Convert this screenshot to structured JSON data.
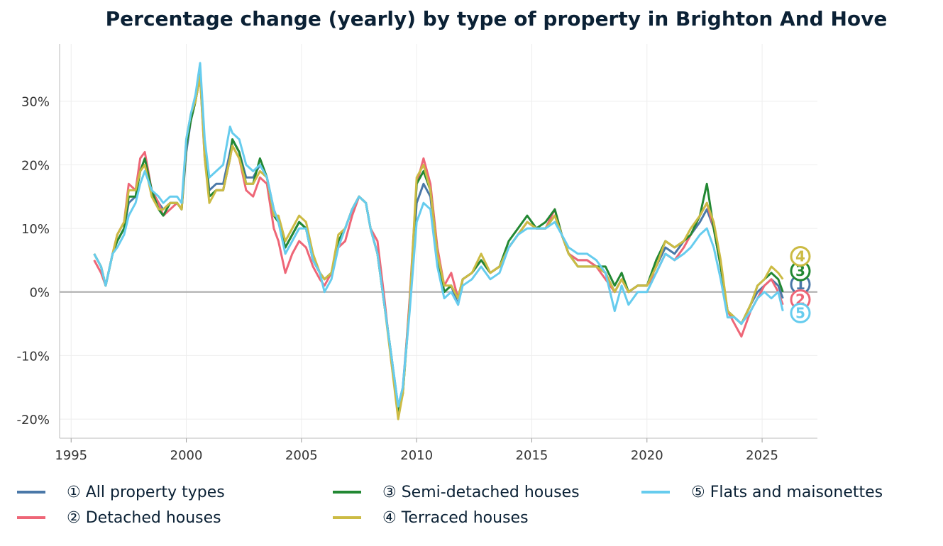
{
  "title": "Percentage change (yearly) by type of property in Brighton And Hove",
  "chart_data": {
    "type": "line",
    "title": "Percentage change (yearly) by type of property in Brighton And Hove",
    "xlabel": "",
    "ylabel": "",
    "xlim": [
      1994.5,
      2027.4
    ],
    "ylim": [
      -23,
      39
    ],
    "x_ticks": [
      "1995",
      "2000",
      "2005",
      "2010",
      "2015",
      "2020",
      "2025"
    ],
    "y_ticks": [
      "-20%",
      "-10%",
      "0%",
      "10%",
      "20%",
      "30%"
    ],
    "y_tick_values": [
      -20,
      -10,
      0,
      10,
      20,
      30
    ],
    "x_tick_values": [
      1995,
      2000,
      2005,
      2010,
      2015,
      2020,
      2025
    ],
    "grid": true,
    "legend_placement": "bottom",
    "x": [
      1996.0,
      1996.3,
      1996.5,
      1996.8,
      1997.0,
      1997.3,
      1997.5,
      1997.8,
      1998.0,
      1998.2,
      1998.5,
      1998.8,
      1999.0,
      1999.3,
      1999.6,
      1999.8,
      2000.0,
      2000.2,
      2000.4,
      2000.6,
      2000.8,
      2001.0,
      2001.3,
      2001.6,
      2001.9,
      2002.0,
      2002.3,
      2002.6,
      2002.9,
      2003.2,
      2003.5,
      2003.8,
      2004.0,
      2004.3,
      2004.6,
      2004.9,
      2005.2,
      2005.5,
      2005.8,
      2006.0,
      2006.3,
      2006.6,
      2006.9,
      2007.2,
      2007.5,
      2007.8,
      2008.0,
      2008.3,
      2008.6,
      2008.9,
      2009.2,
      2009.4,
      2009.7,
      2010.0,
      2010.3,
      2010.6,
      2010.9,
      2011.2,
      2011.5,
      2011.8,
      2012.0,
      2012.4,
      2012.8,
      2013.2,
      2013.6,
      2014.0,
      2014.4,
      2014.8,
      2015.2,
      2015.6,
      2016.0,
      2016.3,
      2016.6,
      2017.0,
      2017.4,
      2017.8,
      2018.2,
      2018.6,
      2018.9,
      2019.2,
      2019.6,
      2020.0,
      2020.4,
      2020.8,
      2021.2,
      2021.6,
      2021.9,
      2022.3,
      2022.6,
      2022.9,
      2023.2,
      2023.5,
      2023.8,
      2024.1,
      2024.5,
      2024.8,
      2025.1,
      2025.4,
      2025.7,
      2025.9
    ],
    "series": [
      {
        "name": "① All property types",
        "marker": "1",
        "color": "#4a78a8",
        "values": [
          6,
          4,
          1,
          6,
          8,
          10,
          14,
          15,
          19,
          20,
          16,
          14,
          13,
          14,
          14,
          13,
          22,
          27,
          30,
          35,
          22,
          16,
          17,
          17,
          22,
          24,
          22,
          18,
          18,
          20,
          18,
          13,
          11,
          7,
          9,
          11,
          10,
          5,
          3,
          2,
          3,
          8,
          10,
          13,
          15,
          14,
          10,
          6,
          -2,
          -10,
          -18,
          -15,
          -2,
          14,
          17,
          15,
          5,
          0,
          1,
          -2,
          2,
          3,
          5,
          3,
          4,
          7,
          9,
          11,
          10,
          10,
          12,
          9,
          6,
          5,
          5,
          4,
          3,
          0,
          2,
          0,
          1,
          1,
          4,
          7,
          6,
          8,
          9,
          11,
          13,
          10,
          4,
          -3,
          -4,
          -5,
          -2,
          0,
          1,
          2,
          1,
          -1
        ]
      },
      {
        "name": "② Detached houses",
        "marker": "2",
        "color": "#ee6677",
        "values": [
          5,
          3,
          1,
          6,
          9,
          11,
          17,
          16,
          21,
          22,
          16,
          14,
          12,
          13,
          14,
          13,
          23,
          27,
          30,
          34,
          21,
          15,
          16,
          16,
          21,
          23,
          21,
          16,
          15,
          18,
          17,
          10,
          8,
          3,
          6,
          8,
          7,
          4,
          2,
          1,
          3,
          7,
          8,
          12,
          15,
          14,
          10,
          8,
          -1,
          -11,
          -19,
          -16,
          -1,
          17,
          21,
          17,
          7,
          1,
          3,
          -1,
          2,
          3,
          5,
          3,
          4,
          7,
          9,
          11,
          10,
          10,
          13,
          9,
          6,
          5,
          5,
          4,
          2,
          0,
          2,
          0,
          1,
          1,
          3,
          6,
          5,
          7,
          9,
          12,
          14,
          10,
          4,
          -3,
          -5,
          -7,
          -3,
          -1,
          1,
          2,
          0,
          -2
        ]
      },
      {
        "name": "③ Semi-detached houses",
        "marker": "3",
        "color": "#228833",
        "values": [
          6,
          4,
          1,
          6,
          8,
          10,
          15,
          15,
          19,
          21,
          16,
          13,
          12,
          14,
          14,
          13,
          23,
          27,
          30,
          34,
          22,
          15,
          16,
          16,
          21,
          24,
          22,
          17,
          17,
          21,
          18,
          12,
          11,
          7,
          9,
          11,
          10,
          5,
          3,
          2,
          3,
          8,
          10,
          13,
          15,
          14,
          10,
          6,
          -2,
          -10,
          -19,
          -16,
          -2,
          17,
          19,
          16,
          6,
          0,
          1,
          -1,
          2,
          3,
          5,
          3,
          4,
          8,
          10,
          12,
          10,
          11,
          13,
          9,
          6,
          4,
          4,
          4,
          4,
          1,
          3,
          0,
          1,
          1,
          5,
          8,
          7,
          8,
          9,
          12,
          17,
          10,
          4,
          -3,
          -4,
          -5,
          -2,
          1,
          2,
          3,
          2,
          0
        ]
      },
      {
        "name": "④ Terraced houses",
        "marker": "4",
        "color": "#ccbb44",
        "values": [
          6,
          4,
          1,
          6,
          9,
          11,
          16,
          16,
          19,
          20,
          15,
          13,
          13,
          14,
          14,
          13,
          24,
          28,
          30,
          34,
          21,
          14,
          16,
          16,
          21,
          23,
          21,
          17,
          17,
          19,
          18,
          12,
          12,
          8,
          10,
          12,
          11,
          6,
          3,
          2,
          3,
          9,
          10,
          13,
          15,
          14,
          10,
          6,
          -2,
          -11,
          -20,
          -16,
          -2,
          18,
          20,
          16,
          6,
          1,
          1,
          -1,
          2,
          3,
          6,
          3,
          4,
          7,
          9,
          11,
          10,
          10,
          12,
          9,
          6,
          4,
          4,
          4,
          3,
          0,
          2,
          0,
          1,
          1,
          4,
          8,
          7,
          8,
          10,
          12,
          14,
          11,
          5,
          -3,
          -4,
          -5,
          -2,
          1,
          2,
          4,
          3,
          2
        ]
      },
      {
        "name": "⑤ Flats and maisonettes",
        "marker": "5",
        "color": "#66ccee",
        "values": [
          6,
          4,
          1,
          6,
          7,
          9,
          12,
          14,
          17,
          19,
          16,
          15,
          14,
          15,
          15,
          14,
          24,
          28,
          31,
          36,
          24,
          18,
          19,
          20,
          26,
          25,
          24,
          20,
          19,
          20,
          18,
          13,
          11,
          6,
          8,
          10,
          10,
          5,
          3,
          0,
          2,
          7,
          10,
          13,
          15,
          14,
          10,
          6,
          -2,
          -10,
          -18,
          -15,
          -3,
          11,
          14,
          13,
          4,
          -1,
          0,
          -2,
          1,
          2,
          4,
          2,
          3,
          7,
          9,
          10,
          10,
          10,
          11,
          9,
          7,
          6,
          6,
          5,
          3,
          -3,
          1,
          -2,
          0,
          0,
          3,
          6,
          5,
          6,
          7,
          9,
          10,
          7,
          2,
          -4,
          -4,
          -5,
          -3,
          -1,
          0,
          -1,
          0,
          -3
        ]
      }
    ]
  }
}
